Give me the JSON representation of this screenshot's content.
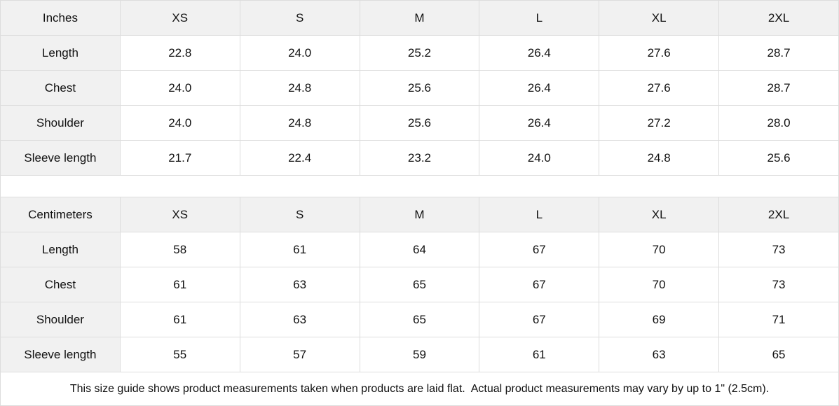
{
  "colors": {
    "header_bg": "#f1f1f1",
    "border": "#dddddd",
    "text": "#111111",
    "cell_bg": "#ffffff"
  },
  "chart_data": [
    {
      "type": "table",
      "unit": "Inches",
      "columns": [
        "XS",
        "S",
        "M",
        "L",
        "XL",
        "2XL"
      ],
      "rows": [
        {
          "label": "Length",
          "values": [
            "22.8",
            "24.0",
            "25.2",
            "26.4",
            "27.6",
            "28.7"
          ]
        },
        {
          "label": "Chest",
          "values": [
            "24.0",
            "24.8",
            "25.6",
            "26.4",
            "27.6",
            "28.7"
          ]
        },
        {
          "label": "Shoulder",
          "values": [
            "24.0",
            "24.8",
            "25.6",
            "26.4",
            "27.2",
            "28.0"
          ]
        },
        {
          "label": "Sleeve length",
          "values": [
            "21.7",
            "22.4",
            "23.2",
            "24.0",
            "24.8",
            "25.6"
          ]
        }
      ]
    },
    {
      "type": "table",
      "unit": "Centimeters",
      "columns": [
        "XS",
        "S",
        "M",
        "L",
        "XL",
        "2XL"
      ],
      "rows": [
        {
          "label": "Length",
          "values": [
            "58",
            "61",
            "64",
            "67",
            "70",
            "73"
          ]
        },
        {
          "label": "Chest",
          "values": [
            "61",
            "63",
            "65",
            "67",
            "70",
            "73"
          ]
        },
        {
          "label": "Shoulder",
          "values": [
            "61",
            "63",
            "65",
            "67",
            "69",
            "71"
          ]
        },
        {
          "label": "Sleeve length",
          "values": [
            "55",
            "57",
            "59",
            "61",
            "63",
            "65"
          ]
        }
      ]
    }
  ],
  "note": "This size guide shows product measurements taken when products are laid flat.  Actual product measurements may vary by up to 1\" (2.5cm)."
}
